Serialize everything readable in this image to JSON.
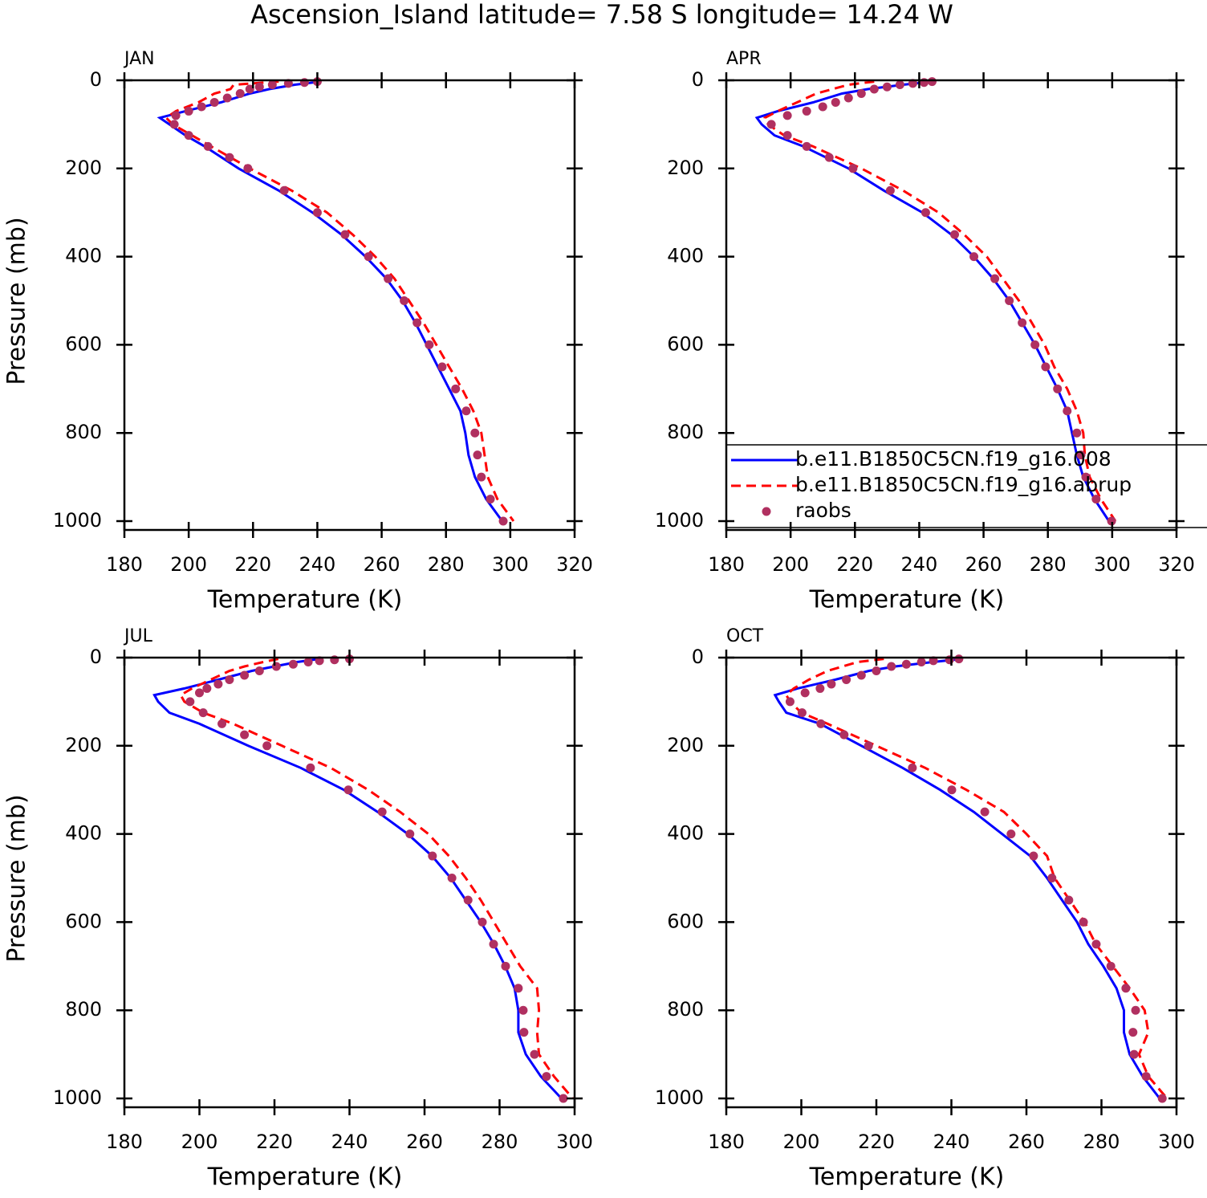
{
  "title": "Ascension_Island  latitude= 7.58 S longitude= 14.24 W",
  "chart_data": [
    {
      "type": "line",
      "title": "JAN",
      "xlabel": "Temperature (K)",
      "ylabel": "Pressure (mb)",
      "xlim": [
        180,
        320
      ],
      "ylim": [
        0,
        1020
      ],
      "y_reversed": true,
      "xticks": [
        180,
        200,
        220,
        240,
        260,
        280,
        300,
        320
      ],
      "yticks": [
        0,
        200,
        400,
        600,
        800,
        1000
      ],
      "series": [
        {
          "color": "#0000ff",
          "dash": false,
          "marker": false,
          "x": [
            241,
            233,
            225,
            219,
            210,
            199,
            191,
            194,
            199,
            205,
            215.5,
            228,
            238.5,
            247.5,
            255,
            261.5,
            266.5,
            270.5,
            274,
            277.5,
            281,
            284.5,
            286,
            287,
            289,
            292.5,
            297.5
          ],
          "values": [
            3,
            10,
            20,
            30,
            50,
            70,
            85,
            100,
            125,
            150,
            200,
            250,
            300,
            350,
            400,
            450,
            500,
            550,
            600,
            650,
            700,
            750,
            800,
            850,
            900,
            950,
            1000
          ]
        },
        {
          "color": "#ff0000",
          "dash": true,
          "marker": false,
          "x": [
            228,
            214,
            213,
            208,
            203,
            196,
            193,
            195,
            201,
            207,
            219,
            232,
            243,
            251,
            258,
            264,
            268.5,
            273,
            277,
            281,
            285,
            288.5,
            291,
            292,
            293,
            296,
            301
          ],
          "values": [
            3,
            10,
            20,
            30,
            50,
            70,
            85,
            100,
            125,
            150,
            200,
            250,
            300,
            350,
            400,
            450,
            500,
            550,
            600,
            650,
            700,
            750,
            800,
            850,
            900,
            950,
            1000
          ]
        },
        {
          "color": "#b03060",
          "dash": false,
          "marker": true,
          "x": [
            240,
            236,
            231,
            226,
            222,
            219,
            216,
            212,
            208,
            204,
            200,
            196,
            195.5,
            200,
            206,
            212.7,
            218.4,
            229.7,
            240,
            248.6,
            255.9,
            262,
            267,
            271,
            274.8,
            278.8,
            283,
            286.3,
            289,
            289.8,
            291,
            293.8,
            297.8
          ],
          "values": [
            3,
            5,
            7,
            10,
            15,
            20,
            30,
            40,
            50,
            60,
            70,
            80,
            100,
            125,
            150,
            175,
            200,
            250,
            300,
            350,
            400,
            450,
            500,
            550,
            600,
            650,
            700,
            750,
            800,
            850,
            900,
            950,
            1000
          ]
        }
      ]
    },
    {
      "type": "line",
      "title": "APR",
      "xlabel": "Temperature (K)",
      "xlim": [
        180,
        320
      ],
      "ylim": [
        0,
        1020
      ],
      "y_reversed": true,
      "legend": "lower right",
      "xticks": [
        180,
        200,
        220,
        240,
        260,
        280,
        300,
        320
      ],
      "yticks": [
        0,
        200,
        400,
        600,
        800,
        1000
      ],
      "series": [
        {
          "name": "b.e11.B1850C5CN.f19_g16.008",
          "color": "#0000ff",
          "dash": false,
          "marker": false,
          "x": [
            244,
            235,
            224,
            216,
            207,
            196,
            189.5,
            191,
            195,
            204,
            218,
            229,
            241,
            250,
            257,
            263,
            268,
            272,
            276,
            279.5,
            283,
            286,
            287.5,
            289,
            291,
            294.5,
            299
          ],
          "values": [
            3,
            10,
            20,
            30,
            50,
            70,
            85,
            100,
            125,
            150,
            200,
            250,
            300,
            350,
            400,
            450,
            500,
            550,
            600,
            650,
            700,
            750,
            800,
            850,
            900,
            950,
            1000
          ]
        },
        {
          "name": "b.e11.B1850C5CN.f19_g16.abrup",
          "color": "#ff0000",
          "dash": true,
          "marker": false,
          "x": [
            226,
            218,
            213,
            208,
            202,
            196,
            192,
            193,
            198,
            207,
            222,
            235,
            246,
            254,
            261,
            266,
            271,
            275,
            279,
            282,
            286,
            289,
            291,
            291.5,
            293,
            296.5,
            301
          ],
          "values": [
            3,
            10,
            20,
            30,
            50,
            70,
            85,
            100,
            125,
            150,
            200,
            250,
            300,
            350,
            400,
            450,
            500,
            550,
            600,
            650,
            700,
            750,
            800,
            850,
            900,
            950,
            1000
          ]
        },
        {
          "name": "raobs",
          "color": "#b03060",
          "dash": false,
          "marker": true,
          "x": [
            244,
            241.5,
            238,
            234,
            230,
            226,
            222,
            218,
            214,
            210,
            205,
            199,
            194,
            199,
            205,
            212,
            219.4,
            231,
            242,
            251,
            257,
            263.5,
            268,
            272,
            276,
            279.3,
            283,
            286,
            289,
            290.3,
            291.8,
            295,
            299.8
          ],
          "values": [
            3,
            5,
            7,
            10,
            15,
            20,
            30,
            40,
            50,
            60,
            70,
            80,
            100,
            125,
            150,
            175,
            200,
            250,
            300,
            350,
            400,
            450,
            500,
            550,
            600,
            650,
            700,
            750,
            800,
            850,
            900,
            950,
            1000
          ]
        }
      ]
    },
    {
      "type": "line",
      "title": "JUL",
      "xlabel": "Temperature (K)",
      "ylabel": "Pressure (mb)",
      "xlim": [
        180,
        300
      ],
      "ylim": [
        0,
        1020
      ],
      "y_reversed": true,
      "xticks": [
        180,
        200,
        220,
        240,
        260,
        280,
        300
      ],
      "yticks": [
        0,
        200,
        400,
        600,
        800,
        1000
      ],
      "series": [
        {
          "color": "#0000ff",
          "dash": false,
          "marker": false,
          "x": [
            232,
            226,
            220,
            214,
            205,
            196,
            188,
            189,
            192,
            200,
            213,
            227,
            238.5,
            247.5,
            255.5,
            262,
            267,
            271,
            275,
            278.5,
            281.5,
            284,
            285,
            285,
            287,
            291,
            296.5
          ],
          "values": [
            3,
            10,
            20,
            30,
            50,
            70,
            85,
            100,
            125,
            150,
            200,
            250,
            300,
            350,
            400,
            450,
            500,
            550,
            600,
            650,
            700,
            750,
            800,
            850,
            900,
            950,
            1000
          ]
        },
        {
          "color": "#ff0000",
          "dash": true,
          "marker": false,
          "x": [
            221,
            217,
            212,
            208,
            203,
            198,
            195,
            196,
            201,
            209,
            222,
            235,
            245,
            253.5,
            261,
            266.5,
            271,
            275,
            278.5,
            282,
            285.5,
            290,
            290.5,
            290,
            290.5,
            294.5,
            299.5
          ],
          "values": [
            3,
            10,
            20,
            30,
            50,
            70,
            85,
            100,
            125,
            150,
            200,
            250,
            300,
            350,
            400,
            450,
            500,
            550,
            600,
            650,
            700,
            750,
            800,
            850,
            900,
            950,
            1000
          ]
        },
        {
          "color": "#b03060",
          "dash": false,
          "marker": true,
          "x": [
            240,
            236,
            232,
            229,
            225,
            220.5,
            216,
            212,
            208,
            205,
            202,
            200,
            197.5,
            201,
            206,
            212,
            218,
            229.6,
            239.7,
            248.7,
            256.1,
            262.1,
            267.3,
            271.6,
            275.4,
            278.4,
            281.6,
            285,
            286.3,
            286.5,
            289.3,
            292.5,
            297
          ],
          "values": [
            3,
            5,
            7,
            10,
            15,
            20,
            30,
            40,
            50,
            60,
            70,
            80,
            100,
            125,
            150,
            175,
            200,
            250,
            300,
            350,
            400,
            450,
            500,
            550,
            600,
            650,
            700,
            750,
            800,
            850,
            900,
            950,
            1000
          ]
        }
      ]
    },
    {
      "type": "line",
      "title": "OCT",
      "xlabel": "Temperature (K)",
      "xlim": [
        180,
        300
      ],
      "ylim": [
        0,
        1020
      ],
      "y_reversed": true,
      "xticks": [
        180,
        200,
        220,
        240,
        260,
        280,
        300
      ],
      "yticks": [
        0,
        200,
        400,
        600,
        800,
        1000
      ],
      "series": [
        {
          "color": "#0000ff",
          "dash": false,
          "marker": false,
          "x": [
            243,
            235,
            225,
            218,
            209,
            199,
            193,
            194,
            196,
            205,
            216,
            227,
            237,
            246,
            253.5,
            261,
            265.5,
            269.5,
            273.5,
            276.5,
            280.5,
            284,
            286,
            286,
            287.5,
            291,
            295.5
          ],
          "values": [
            3,
            10,
            20,
            30,
            50,
            70,
            85,
            100,
            125,
            150,
            200,
            250,
            300,
            350,
            400,
            450,
            500,
            550,
            600,
            650,
            700,
            750,
            800,
            850,
            900,
            950,
            1000
          ]
        },
        {
          "color": "#ff0000",
          "dash": true,
          "marker": false,
          "x": [
            222,
            215,
            211,
            207,
            202,
            198,
            196,
            197,
            200,
            207,
            220,
            233,
            244,
            254,
            260,
            265.5,
            267.5,
            271.5,
            275.5,
            278.5,
            283,
            287.5,
            291.5,
            292.5,
            290,
            292.5,
            297.5
          ],
          "values": [
            3,
            10,
            20,
            30,
            50,
            70,
            85,
            100,
            125,
            150,
            200,
            250,
            300,
            350,
            400,
            450,
            500,
            550,
            600,
            650,
            700,
            750,
            800,
            850,
            900,
            950,
            1000
          ]
        },
        {
          "color": "#b03060",
          "dash": false,
          "marker": true,
          "x": [
            242,
            239.5,
            235.2,
            232,
            228,
            224,
            220,
            216,
            212,
            208,
            205,
            201,
            197,
            200.2,
            205.2,
            211.4,
            217.9,
            229.6,
            240.1,
            248.9,
            255.9,
            261.9,
            266.8,
            271.3,
            275.2,
            278.6,
            282.5,
            286.5,
            289.1,
            288.4,
            288.7,
            291.9,
            296.2
          ],
          "values": [
            3,
            5,
            7,
            10,
            15,
            20,
            30,
            40,
            50,
            60,
            70,
            80,
            100,
            125,
            150,
            175,
            200,
            250,
            300,
            350,
            400,
            450,
            500,
            550,
            600,
            650,
            700,
            750,
            800,
            850,
            900,
            950,
            1000
          ]
        }
      ]
    }
  ]
}
